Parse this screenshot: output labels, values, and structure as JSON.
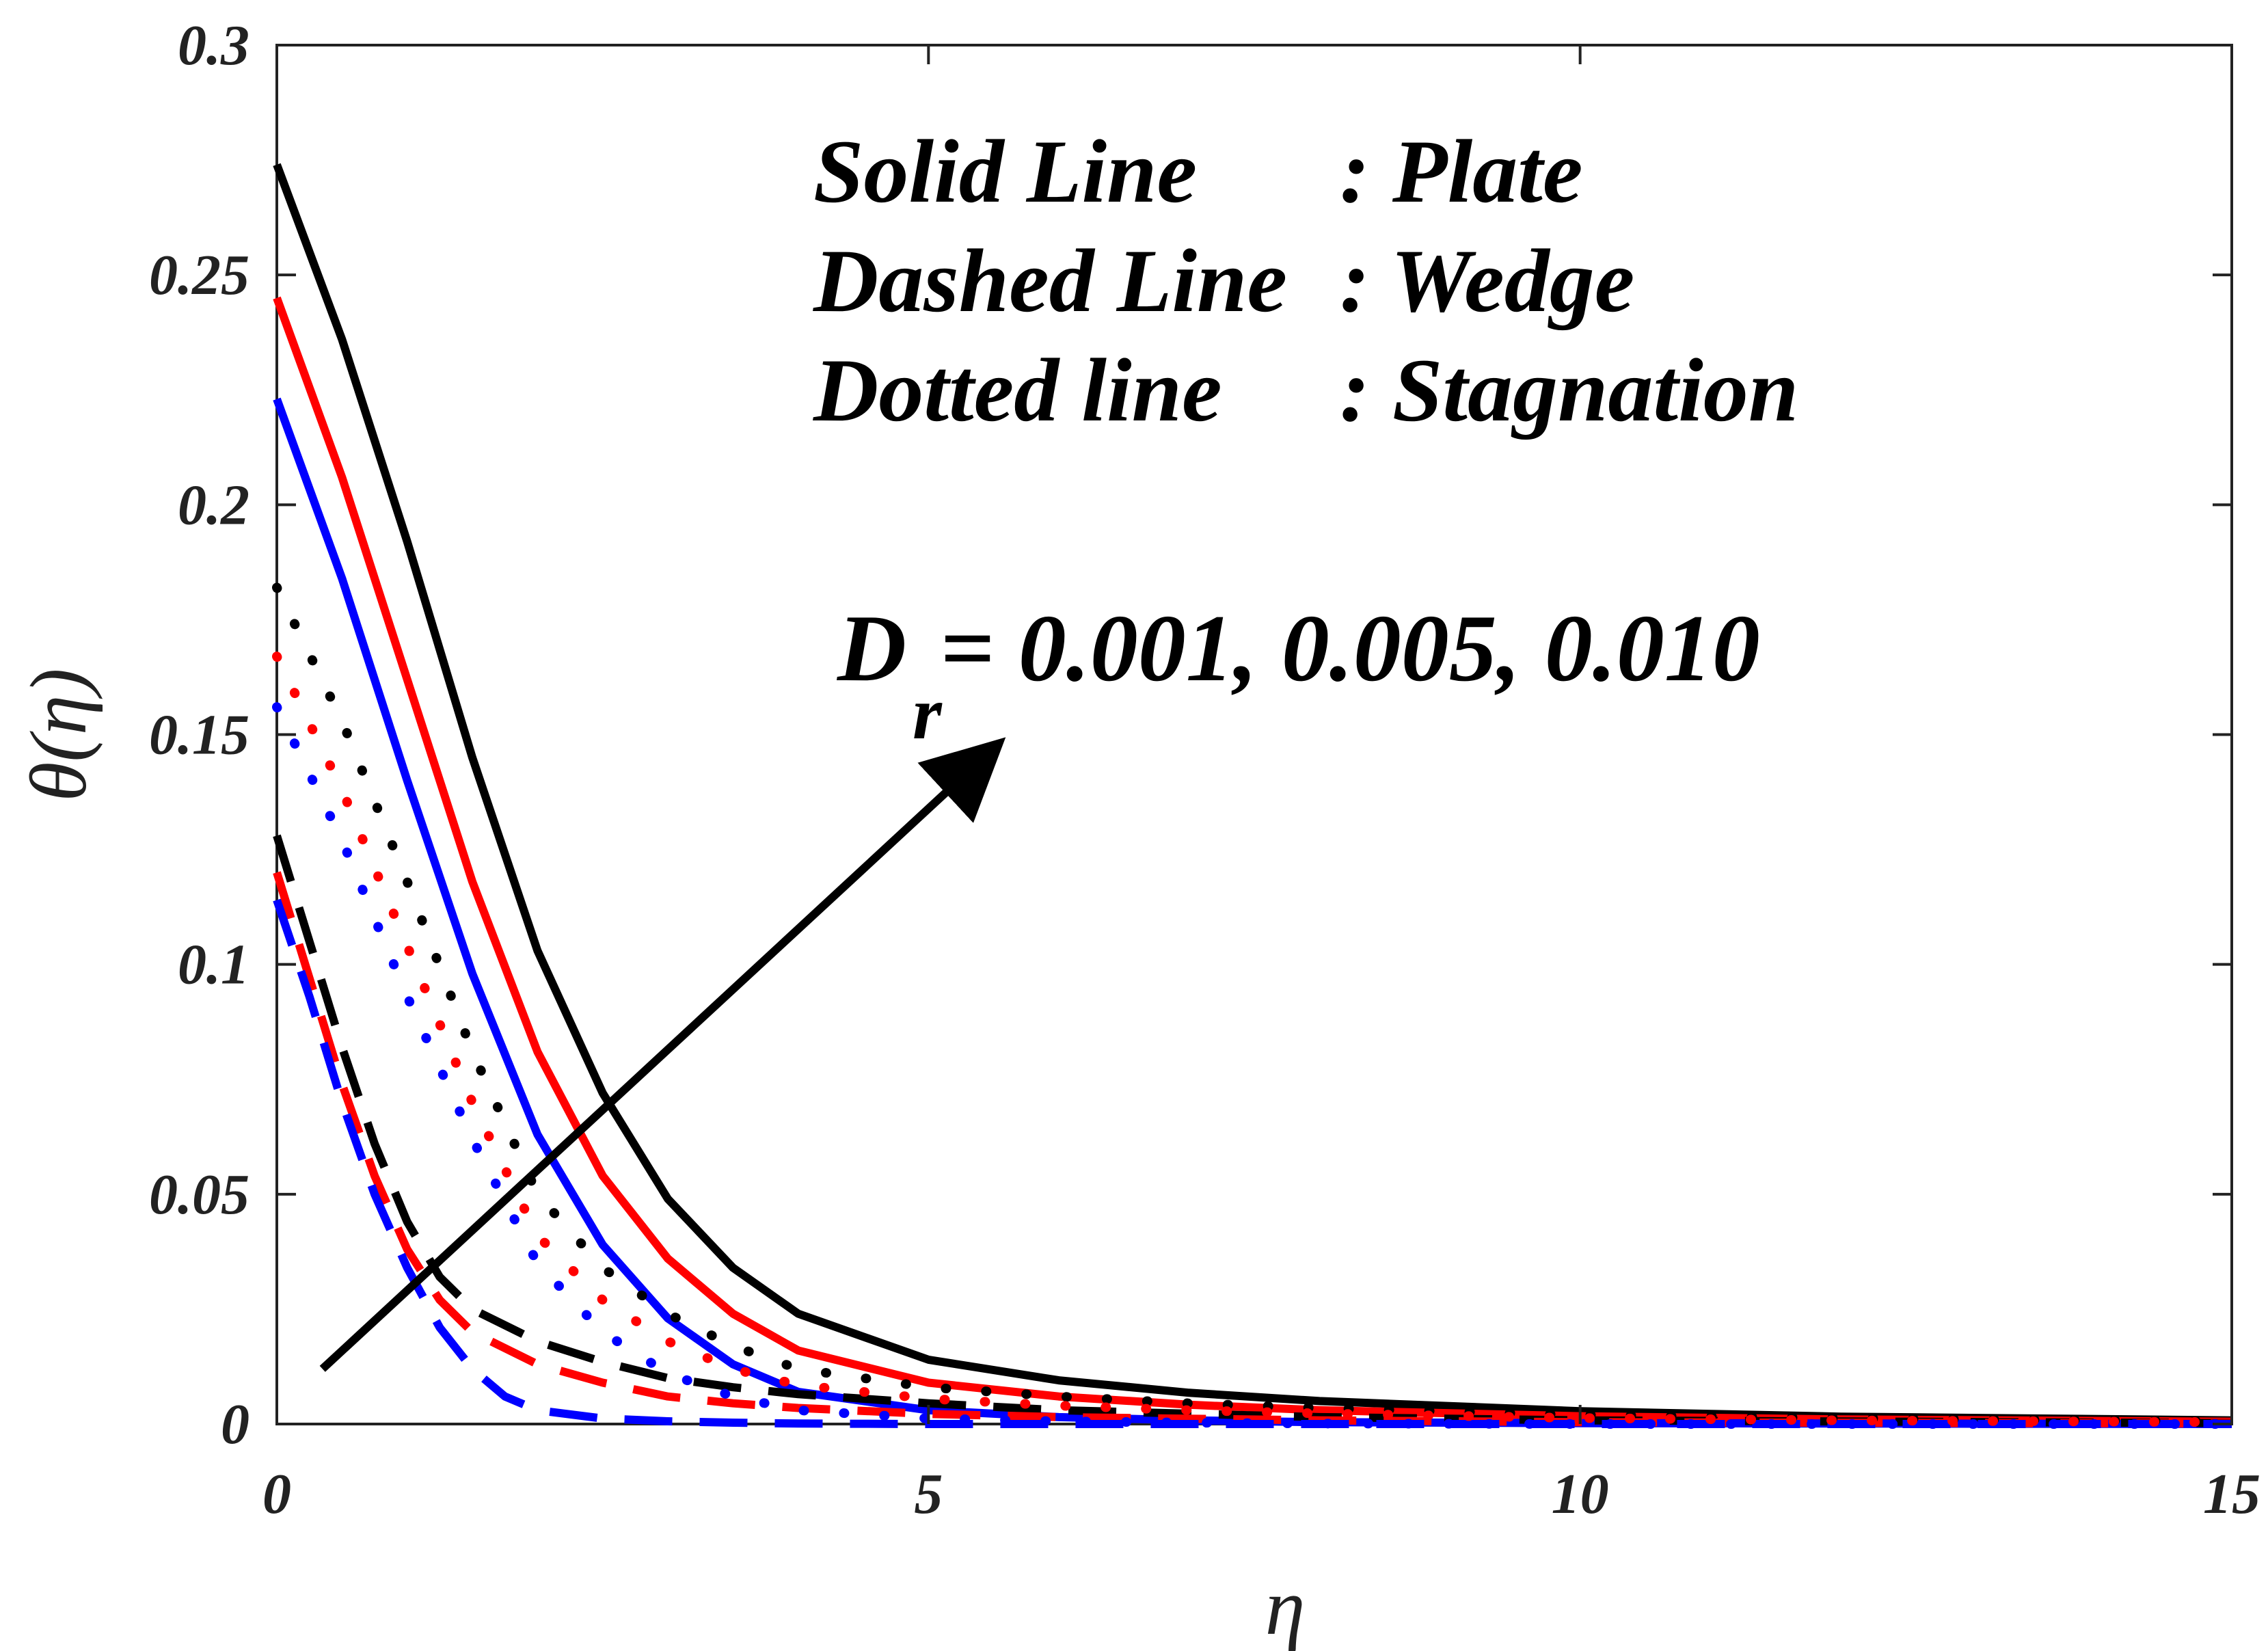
{
  "chart_data": {
    "type": "line",
    "title": "",
    "xlabel": "η",
    "ylabel": "θ(η)",
    "xlim": [
      0,
      15
    ],
    "ylim": [
      0,
      0.3
    ],
    "xticks": [
      "0",
      "5",
      "10",
      "15"
    ],
    "yticks": [
      "0",
      "0.05",
      "0.1",
      "0.15",
      "0.2",
      "0.25",
      "0.3"
    ],
    "legend": [
      {
        "name": "Solid Line",
        "value": ": Plate"
      },
      {
        "name": "Dashed Line",
        "value": ": Wedge"
      },
      {
        "name": "Dotted line",
        "value": ": Stagnation"
      }
    ],
    "annotation": {
      "main": "D",
      "subscript": "r",
      "rest": " = 0.001, 0.005, 0.010",
      "arrow_from": [
        0.35,
        0.012
      ],
      "arrow_to": [
        5.5,
        0.147
      ]
    },
    "colors": {
      "black": "#000000",
      "red": "#ff0000",
      "blue": "#0000ff"
    },
    "series": [
      {
        "name": "Plate Dr=0.010",
        "style": "solid",
        "color": "#000000",
        "x": [
          0,
          0.5,
          1,
          1.5,
          2,
          2.5,
          3,
          3.5,
          4,
          5,
          6,
          7,
          8,
          10,
          12,
          15
        ],
        "y": [
          0.274,
          0.236,
          0.192,
          0.145,
          0.103,
          0.072,
          0.049,
          0.034,
          0.024,
          0.014,
          0.0095,
          0.0068,
          0.005,
          0.0028,
          0.0016,
          0.0008
        ]
      },
      {
        "name": "Plate Dr=0.005",
        "style": "solid",
        "color": "#ff0000",
        "x": [
          0,
          0.5,
          1,
          1.5,
          2,
          2.5,
          3,
          3.5,
          4,
          5,
          6,
          7,
          8,
          10,
          12,
          15
        ],
        "y": [
          0.245,
          0.206,
          0.162,
          0.118,
          0.081,
          0.054,
          0.036,
          0.024,
          0.016,
          0.009,
          0.006,
          0.0042,
          0.003,
          0.0017,
          0.001,
          0.0005
        ]
      },
      {
        "name": "Plate Dr=0.001",
        "style": "solid",
        "color": "#0000ff",
        "x": [
          0,
          0.5,
          1,
          1.5,
          2,
          2.5,
          3,
          3.5,
          4,
          5,
          6,
          7,
          8,
          10,
          12,
          15
        ],
        "y": [
          0.223,
          0.184,
          0.14,
          0.098,
          0.063,
          0.039,
          0.023,
          0.013,
          0.007,
          0.003,
          0.0015,
          0.0008,
          0.0004,
          0.0002,
          0.0001,
          0.0
        ]
      },
      {
        "name": "Wedge Dr=0.010",
        "style": "dashed",
        "color": "#000000",
        "x": [
          0,
          0.25,
          0.5,
          0.75,
          1,
          1.25,
          1.5,
          2,
          2.5,
          3,
          3.5,
          4,
          5,
          6,
          8,
          10,
          15
        ],
        "y": [
          0.128,
          0.105,
          0.082,
          0.061,
          0.044,
          0.032,
          0.025,
          0.018,
          0.0135,
          0.01,
          0.008,
          0.0065,
          0.0045,
          0.003,
          0.0015,
          0.0008,
          0.0002
        ]
      },
      {
        "name": "Wedge Dr=0.005",
        "style": "dashed",
        "color": "#ff0000",
        "x": [
          0,
          0.25,
          0.5,
          0.75,
          1,
          1.25,
          1.5,
          2,
          2.5,
          3,
          3.5,
          4,
          5,
          6,
          8,
          10,
          15
        ],
        "y": [
          0.12,
          0.097,
          0.074,
          0.054,
          0.038,
          0.027,
          0.02,
          0.013,
          0.009,
          0.006,
          0.0045,
          0.0035,
          0.0022,
          0.0015,
          0.0008,
          0.0004,
          0.0001
        ]
      },
      {
        "name": "Wedge Dr=0.001",
        "style": "dashed",
        "color": "#0000ff",
        "x": [
          0,
          0.25,
          0.5,
          0.75,
          1,
          1.25,
          1.5,
          1.75,
          2,
          2.5,
          3,
          3.5,
          4,
          5,
          6,
          8,
          15
        ],
        "y": [
          0.114,
          0.093,
          0.07,
          0.05,
          0.034,
          0.021,
          0.012,
          0.006,
          0.003,
          0.0012,
          0.0006,
          0.0003,
          0.0001,
          0.0,
          0.0,
          0.0,
          0.0
        ]
      },
      {
        "name": "Stagnation Dr=0.010",
        "style": "dotted",
        "color": "#000000",
        "x": [
          0,
          0.5,
          1,
          1.5,
          2,
          2.5,
          3,
          3.5,
          4,
          5,
          6,
          7,
          8,
          10,
          12,
          15
        ],
        "y": [
          0.182,
          0.153,
          0.118,
          0.081,
          0.05,
          0.034,
          0.024,
          0.017,
          0.012,
          0.008,
          0.006,
          0.0045,
          0.0035,
          0.002,
          0.0013,
          0.0006
        ]
      },
      {
        "name": "Stagnation Dr=0.005",
        "style": "dotted",
        "color": "#ff0000",
        "x": [
          0,
          0.5,
          1,
          1.5,
          2,
          2.5,
          3,
          3.5,
          4,
          5,
          6,
          7,
          8,
          10,
          12,
          15
        ],
        "y": [
          0.167,
          0.138,
          0.104,
          0.07,
          0.041,
          0.027,
          0.018,
          0.012,
          0.0085,
          0.0055,
          0.004,
          0.003,
          0.0023,
          0.0013,
          0.0008,
          0.0004
        ]
      },
      {
        "name": "Stagnation Dr=0.001",
        "style": "dotted",
        "color": "#0000ff",
        "x": [
          0,
          0.5,
          1,
          1.5,
          2,
          2.5,
          3,
          3.5,
          4,
          5,
          6,
          7,
          8,
          10,
          12,
          15
        ],
        "y": [
          0.156,
          0.127,
          0.093,
          0.062,
          0.035,
          0.02,
          0.011,
          0.006,
          0.003,
          0.0012,
          0.0006,
          0.0003,
          0.0001,
          0.0,
          0.0,
          0.0
        ]
      }
    ]
  }
}
